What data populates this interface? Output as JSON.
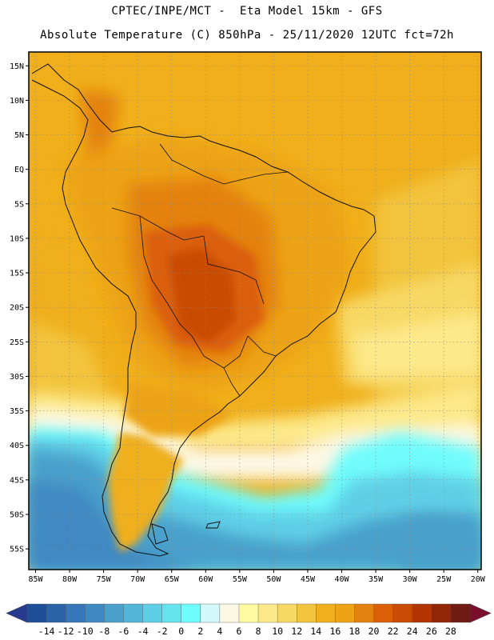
{
  "title": {
    "line1": "CPTEC/INPE/MCT -  Eta Model 15km - GFS",
    "line2": "Absolute Temperature (C) 850hPa - 25/11/2020 12UTC fct=72h"
  },
  "map": {
    "lat_ticks": [
      "15N",
      "10N",
      "5N",
      "EQ",
      "5S",
      "10S",
      "15S",
      "20S",
      "25S",
      "30S",
      "35S",
      "40S",
      "45S",
      "50S",
      "55S"
    ],
    "lat_values": [
      15,
      10,
      5,
      0,
      -5,
      -10,
      -15,
      -20,
      -25,
      -30,
      -35,
      -40,
      -45,
      -50,
      -55
    ],
    "lon_ticks": [
      "85W",
      "80W",
      "75W",
      "70W",
      "65W",
      "60W",
      "55W",
      "50W",
      "45W",
      "40W",
      "35W",
      "30W",
      "25W",
      "20W"
    ],
    "lon_values": [
      -85,
      -80,
      -75,
      -70,
      -65,
      -60,
      -55,
      -50,
      -45,
      -40,
      -35,
      -30,
      -25,
      -20
    ],
    "extent": {
      "lon_min": -86,
      "lon_max": -19.5,
      "lat_min": -58,
      "lat_max": 17
    }
  },
  "colorbar": {
    "labels": [
      "-14",
      "-12",
      "-10",
      "-8",
      "-6",
      "-4",
      "-2",
      "0",
      "2",
      "4",
      "6",
      "8",
      "10",
      "12",
      "14",
      "16",
      "18",
      "20",
      "22",
      "24",
      "26",
      "28"
    ],
    "colors": [
      "#1f4e99",
      "#2c63a8",
      "#3577b9",
      "#3f89c3",
      "#4aa0cb",
      "#51b6d8",
      "#5fcfe6",
      "#66e3ef",
      "#6ffcfc",
      "#d3f8fb",
      "#fdf8e4",
      "#fdfaa0",
      "#fce98a",
      "#f8d865",
      "#f2c43d",
      "#f0af1b",
      "#eda313",
      "#e4820f",
      "#db5f07",
      "#c94b04",
      "#b23503",
      "#922507",
      "#6f1a12"
    ],
    "left_arrow_color": "#283a8e",
    "right_arrow_color": "#7a0e2c"
  }
}
